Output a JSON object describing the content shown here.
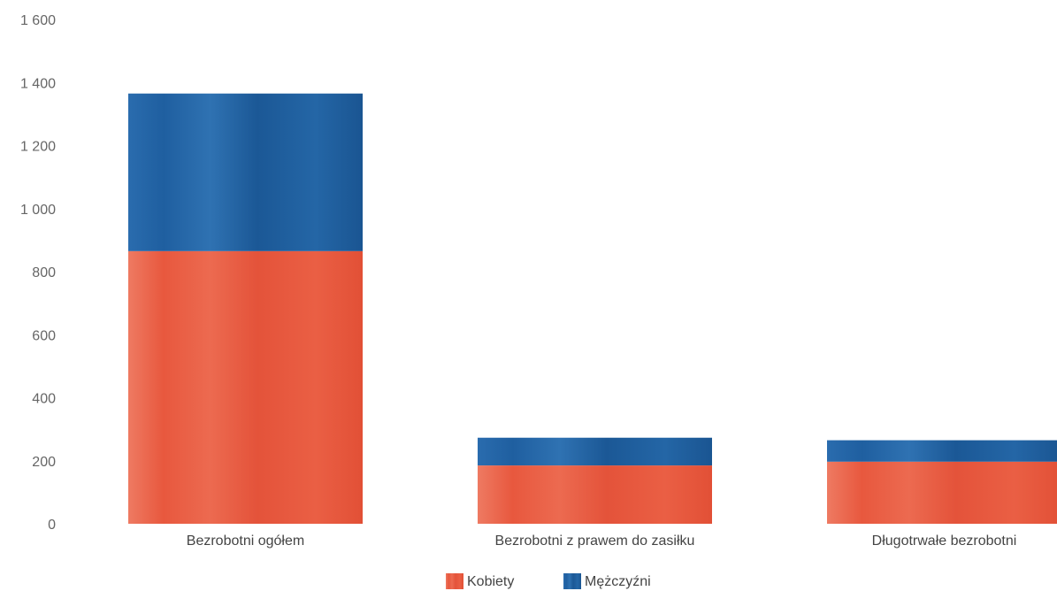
{
  "chart_data": {
    "type": "bar",
    "stacked": true,
    "title": "",
    "xlabel": "",
    "ylabel": "",
    "categories": [
      "Bezrobotni ogółem",
      "Bezrobotni z prawem do zasiłku",
      "Długotrwałe bezrobotni"
    ],
    "series": [
      {
        "name": "Kobiety",
        "values": [
          865,
          185,
          197
        ],
        "color": "#e8583e"
      },
      {
        "name": "Mężczyźni",
        "values": [
          500,
          88,
          68
        ],
        "color": "#1f5fa0"
      }
    ],
    "ylim": [
      0,
      1600
    ],
    "yticks": [
      0,
      200,
      400,
      600,
      800,
      1000,
      1200,
      1400,
      1600
    ],
    "ytick_labels": [
      "0",
      "200",
      "400",
      "600",
      "800",
      "1 000",
      "1 200",
      "1 400",
      "1 600"
    ],
    "grid": false,
    "legend_position": "bottom-center"
  }
}
